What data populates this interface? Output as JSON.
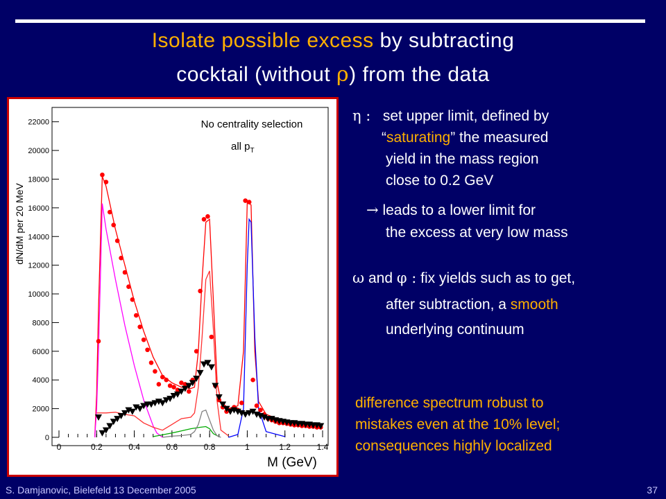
{
  "slide": {
    "title_line1_highlight": "Isolate possible excess",
    "title_line1_rest": " by subtracting",
    "title_line2_a": "cocktail (without ",
    "title_line2_sym": "ρ",
    "title_line2_b": ") from the data",
    "eta_symbol": "η :",
    "eta_line1": "set upper limit, defined by",
    "eta_line2_q": "“",
    "eta_line2_hl": "saturating",
    "eta_line2_rest": "” the measured",
    "eta_line3": "yield in the mass region",
    "eta_line4": "close to 0.2 GeV",
    "arrow_symbol": "→",
    "arrow_line1": "leads to a lower limit for",
    "arrow_line2": "the excess at very low mass",
    "omega_symbol": "ω",
    "omega_and": " and ",
    "phi_symbol": "φ :",
    "omega_line1": "fix yields such as to get,",
    "omega_line2": "after subtraction, a ",
    "omega_line2_hl": "smooth",
    "omega_line3": "underlying continuum",
    "diff_line1": "difference spectrum robust to",
    "diff_line2": "mistakes even at the 10% level;",
    "diff_line3": "consequences highly localized",
    "footer_left": "S. Damjanovic, Bielefeld 13 December 2005",
    "page_number": "37",
    "colors": {
      "background": "#000066",
      "highlight": "#ffb000",
      "text": "#ffffff"
    }
  },
  "chart_data": {
    "type": "line",
    "ylabel": "dN/dM per 20 MeV",
    "xlabel": "M (GeV)",
    "annotation_line1": "No centrality selection",
    "annotation_line2": "all p",
    "annotation_sub": "T",
    "xlim": [
      0,
      1.4
    ],
    "ylim": [
      0,
      23000
    ],
    "xticks": [
      "0",
      "0.2",
      "0.4",
      "0.6",
      "0.8",
      "1",
      "1.2",
      "1.4"
    ],
    "yticks": [
      "0",
      "2000",
      "4000",
      "6000",
      "8000",
      "10000",
      "12000",
      "14000",
      "16000",
      "18000",
      "20000",
      "22000"
    ],
    "series": [
      {
        "color": "#ff0000",
        "style": "circles",
        "x": [
          0.21,
          0.23,
          0.25,
          0.27,
          0.29,
          0.31,
          0.33,
          0.35,
          0.37,
          0.39,
          0.41,
          0.43,
          0.45,
          0.47,
          0.49,
          0.51,
          0.53,
          0.55,
          0.57,
          0.59,
          0.61,
          0.63,
          0.65,
          0.67,
          0.69,
          0.71,
          0.73,
          0.75,
          0.77,
          0.79,
          0.81,
          0.83,
          0.85,
          0.87,
          0.89,
          0.91,
          0.93,
          0.95,
          0.97,
          0.99,
          1.01,
          1.03,
          1.05,
          1.07,
          1.09,
          1.11,
          1.13,
          1.15,
          1.17,
          1.19,
          1.21,
          1.23,
          1.25,
          1.27,
          1.29,
          1.31,
          1.33,
          1.35,
          1.37,
          1.39
        ],
        "y": [
          6700,
          18300,
          17800,
          15700,
          14800,
          13700,
          12500,
          11500,
          10500,
          9600,
          8500,
          7700,
          6800,
          6100,
          5200,
          4600,
          3700,
          4200,
          4000,
          3600,
          3500,
          3300,
          3800,
          3700,
          3200,
          4000,
          6000,
          10200,
          15200,
          15400,
          7000,
          3600,
          2600,
          2100,
          1800,
          1900,
          2100,
          1900,
          2400,
          16500,
          16400,
          4000,
          2200,
          1900,
          1600,
          1300,
          1200,
          1100,
          1000,
          1000,
          950,
          900,
          850,
          850,
          800,
          800,
          750,
          750,
          700,
          700
        ]
      },
      {
        "color": "#000000",
        "style": "triangles",
        "x": [
          0.21,
          0.23,
          0.25,
          0.27,
          0.29,
          0.31,
          0.33,
          0.35,
          0.37,
          0.39,
          0.41,
          0.43,
          0.45,
          0.47,
          0.49,
          0.51,
          0.53,
          0.55,
          0.57,
          0.59,
          0.61,
          0.63,
          0.65,
          0.67,
          0.69,
          0.71,
          0.73,
          0.75,
          0.77,
          0.79,
          0.81,
          0.83,
          0.85,
          0.87,
          0.89,
          0.91,
          0.93,
          0.95,
          0.97,
          0.99,
          1.01,
          1.03,
          1.05,
          1.07,
          1.09,
          1.11,
          1.13,
          1.15,
          1.17,
          1.19,
          1.21,
          1.23,
          1.25,
          1.27,
          1.29,
          1.31,
          1.33,
          1.35,
          1.37,
          1.39
        ],
        "y": [
          1400,
          300,
          500,
          800,
          1100,
          1300,
          1500,
          1700,
          1900,
          1800,
          2100,
          2000,
          2200,
          2300,
          2300,
          2400,
          2500,
          2400,
          2600,
          2700,
          2900,
          3000,
          3200,
          3400,
          3600,
          3800,
          4100,
          4500,
          5100,
          5200,
          4900,
          3600,
          2800,
          2300,
          2000,
          1800,
          1900,
          1800,
          1700,
          1600,
          1700,
          1800,
          1600,
          1500,
          1400,
          1300,
          1300,
          1200,
          1150,
          1100,
          1050,
          1000,
          1000,
          950,
          950,
          900,
          900,
          850,
          850,
          800
        ]
      },
      {
        "color": "#ff0000",
        "style": "line",
        "x": [
          0.19,
          0.2,
          0.21,
          0.23,
          0.25,
          0.3,
          0.35,
          0.4,
          0.45,
          0.5,
          0.55,
          0.6,
          0.65,
          0.7,
          0.72,
          0.74,
          0.76,
          0.78,
          0.8,
          0.82,
          0.84,
          0.86,
          0.9,
          0.95,
          0.98,
          1.0,
          1.02,
          1.04,
          1.06,
          1.1,
          1.2,
          1.3,
          1.4
        ],
        "y": [
          0,
          3000,
          9000,
          18200,
          17500,
          14500,
          12000,
          9500,
          7400,
          5600,
          4300,
          3800,
          3500,
          3400,
          3500,
          6000,
          11000,
          15000,
          15200,
          9500,
          3800,
          2500,
          2000,
          2200,
          6000,
          16400,
          16200,
          6000,
          2500,
          1600,
          1100,
          900,
          700
        ]
      },
      {
        "color": "#ff00ff",
        "style": "line",
        "x": [
          0.19,
          0.2,
          0.21,
          0.23,
          0.25,
          0.3,
          0.35,
          0.4,
          0.45,
          0.5,
          0.52,
          0.55
        ],
        "y": [
          0,
          2000,
          6000,
          16300,
          14500,
          11000,
          7800,
          5000,
          2600,
          800,
          300,
          0
        ]
      },
      {
        "color": "#ff3030",
        "style": "line",
        "x": [
          0.2,
          0.25,
          0.3,
          0.35,
          0.4,
          0.45,
          0.5,
          0.55,
          0.6,
          0.65,
          0.7,
          0.72,
          0.74,
          0.76,
          0.78,
          0.8,
          0.82,
          0.84,
          0.86,
          0.9
        ],
        "y": [
          1700,
          1700,
          1750,
          1600,
          1500,
          1000,
          700,
          500,
          900,
          1300,
          1400,
          1700,
          3500,
          7000,
          11000,
          11600,
          7500,
          2500,
          500,
          100
        ]
      },
      {
        "color": "#0000ff",
        "style": "line",
        "x": [
          0.9,
          0.95,
          0.98,
          1.0,
          1.01,
          1.02,
          1.04,
          1.06,
          1.1,
          1.2
        ],
        "y": [
          0,
          200,
          2000,
          12000,
          15200,
          15000,
          7000,
          2000,
          400,
          50
        ]
      },
      {
        "color": "#00aa00",
        "style": "line",
        "x": [
          0.5,
          0.6,
          0.65,
          0.7,
          0.75,
          0.78,
          0.8,
          0.82,
          0.85
        ],
        "y": [
          50,
          300,
          450,
          600,
          700,
          750,
          600,
          250,
          50
        ]
      },
      {
        "color": "#808080",
        "style": "line",
        "x": [
          0.55,
          0.6,
          0.65,
          0.7,
          0.72,
          0.74,
          0.76,
          0.78,
          0.8,
          0.82,
          0.84,
          0.86
        ],
        "y": [
          0,
          80,
          120,
          200,
          400,
          900,
          1800,
          1900,
          1200,
          500,
          100,
          0
        ]
      }
    ]
  }
}
